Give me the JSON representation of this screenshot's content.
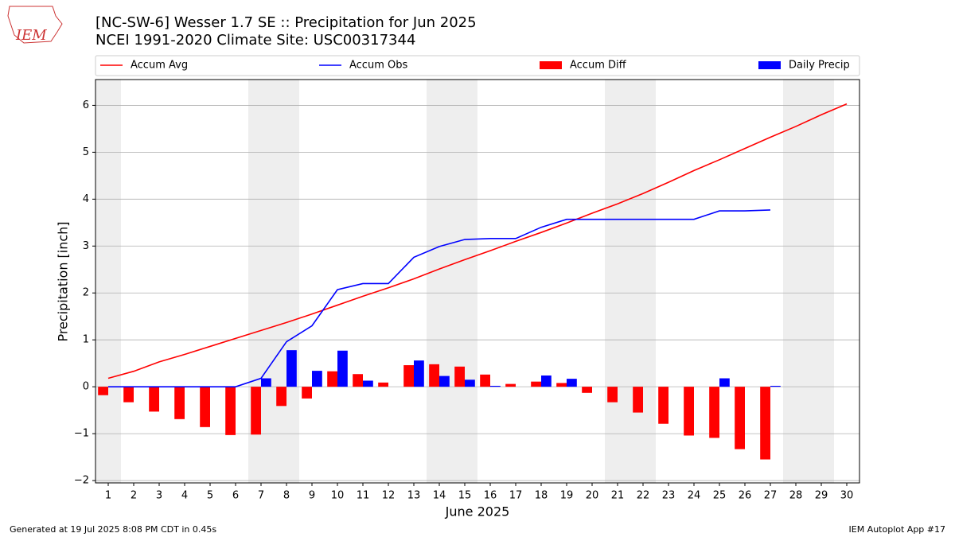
{
  "logo": "IEM",
  "footer_left": "Generated at 19 Jul 2025 8:08 PM CDT in 0.45s",
  "footer_right": "IEM Autoplot App #17",
  "chart_data": {
    "type": "bar",
    "title": "[NC-SW-6] Wesser 1.7 SE :: Precipitation for Jun 2025",
    "subtitle": "NCEI 1991-2020 Climate Site: USC00317344",
    "x_label": "June 2025",
    "y_label": "Precipitation [inch]",
    "categories": [
      "1",
      "2",
      "3",
      "4",
      "5",
      "6",
      "7",
      "8",
      "9",
      "10",
      "11",
      "12",
      "13",
      "14",
      "15",
      "16",
      "17",
      "18",
      "19",
      "20",
      "21",
      "22",
      "23",
      "24",
      "25",
      "26",
      "27",
      "28",
      "29",
      "30"
    ],
    "shaded_ranges": [
      [
        0.5,
        1.5
      ],
      [
        6.5,
        8.5
      ],
      [
        13.5,
        15.5
      ],
      [
        20.5,
        22.5
      ],
      [
        27.5,
        29.5
      ]
    ],
    "ylim": [
      -2.05,
      6.55
    ],
    "yticks": [
      {
        "value": -2,
        "label": "−2"
      },
      {
        "value": -1,
        "label": "−1"
      },
      0,
      1,
      2,
      3,
      4,
      5,
      6
    ],
    "grid": true,
    "series": [
      {
        "name": "Accum Avg",
        "type": "line",
        "color": "#ff0000",
        "values": [
          0.18,
          0.33,
          0.53,
          0.69,
          0.86,
          1.03,
          1.2,
          1.37,
          1.55,
          1.74,
          1.93,
          2.11,
          2.3,
          2.51,
          2.71,
          2.9,
          3.1,
          3.29,
          3.49,
          3.7,
          3.9,
          4.12,
          4.36,
          4.61,
          4.84,
          5.08,
          5.32,
          5.55,
          5.8,
          6.03
        ]
      },
      {
        "name": "Accum Obs",
        "type": "line",
        "color": "#0000ff",
        "values": [
          0,
          0,
          0,
          0,
          0,
          0,
          0.18,
          0.96,
          1.3,
          2.07,
          2.2,
          2.2,
          2.76,
          2.99,
          3.14,
          3.16,
          3.16,
          3.4,
          3.57,
          3.57,
          3.57,
          3.57,
          3.57,
          3.57,
          3.75,
          3.75,
          3.77,
          null,
          null,
          null
        ]
      },
      {
        "name": "Accum Diff",
        "type": "bar",
        "color": "#ff0000",
        "values": [
          -0.18,
          -0.33,
          -0.53,
          -0.69,
          -0.86,
          -1.03,
          -1.02,
          -0.41,
          -0.25,
          0.33,
          0.27,
          0.09,
          0.46,
          0.48,
          0.43,
          0.26,
          0.06,
          0.11,
          0.08,
          -0.13,
          -0.33,
          -0.55,
          -0.79,
          -1.04,
          -1.09,
          -1.33,
          -1.55,
          null,
          null,
          null
        ]
      },
      {
        "name": "Daily Precip",
        "type": "bar",
        "color": "#0000ff",
        "values": [
          0,
          0,
          0,
          0,
          0,
          0,
          0.18,
          0.78,
          0.34,
          0.77,
          0.13,
          0,
          0.56,
          0.23,
          0.15,
          0.02,
          0,
          0.24,
          0.17,
          0,
          0,
          0,
          0,
          0,
          0.18,
          0,
          0.02,
          null,
          null,
          null
        ]
      }
    ]
  }
}
